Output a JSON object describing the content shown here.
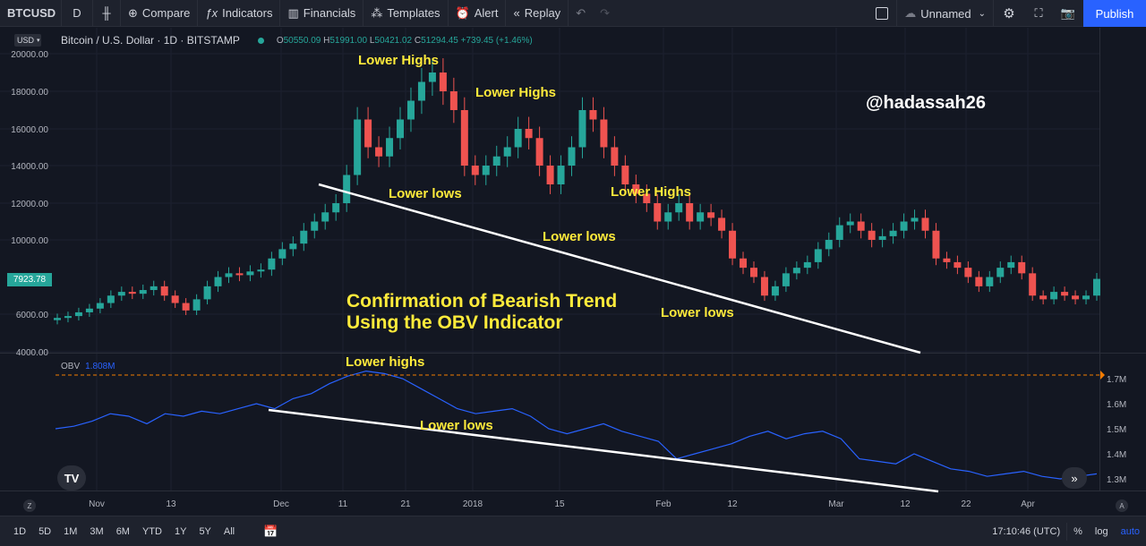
{
  "toolbar": {
    "symbol": "BTCUSD",
    "interval": "D",
    "compare": "Compare",
    "indicators": "Indicators",
    "financials": "Financials",
    "templates": "Templates",
    "alert": "Alert",
    "replay": "Replay",
    "layout_name": "Unnamed",
    "publish": "Publish"
  },
  "legend": {
    "currency": "USD",
    "title": "Bitcoin / U.S. Dollar · 1D · BITSTAMP",
    "open_label": "O",
    "open": "50550.09",
    "high_label": "H",
    "high": "51991.00",
    "low_label": "L",
    "low": "50421.02",
    "close_label": "C",
    "close": "51294.45",
    "change": "+739.45 (+1.46%)"
  },
  "obv_legend": {
    "name": "OBV",
    "value": "1.808M"
  },
  "price_tag": "7923.78",
  "annotations": {
    "lower_highs_1": "Lower Highs",
    "lower_highs_2": "Lower Highs",
    "lower_highs_3": "Lower Highs",
    "lower_lows_1": "Lower lows",
    "lower_lows_2": "Lower lows",
    "lower_lows_3": "Lower lows",
    "confirmation_line1": "Confirmation of Bearish Trend",
    "confirmation_line2": "Using the OBV Indicator",
    "obv_lower_highs": "Lower highs",
    "obv_lower_lows": "Lower lows",
    "watermark": "@hadassah26"
  },
  "price_axis": [
    "20000.00",
    "18000.00",
    "16000.00",
    "14000.00",
    "12000.00",
    "10000.00",
    "6000.00",
    "4000.00"
  ],
  "obv_axis": [
    "1.7M",
    "1.6M",
    "1.5M",
    "1.4M",
    "1.3M"
  ],
  "time_axis": [
    "Nov",
    "13",
    "Dec",
    "11",
    "21",
    "2018",
    "15",
    "Feb",
    "12",
    "Mar",
    "12",
    "22",
    "Apr"
  ],
  "bottom": {
    "ranges": [
      "1D",
      "5D",
      "1M",
      "3M",
      "6M",
      "YTD",
      "1Y",
      "5Y",
      "All"
    ],
    "time": "17:10:46 (UTC)",
    "percent": "%",
    "log": "log",
    "auto": "auto"
  },
  "colors": {
    "up": "#26a69a",
    "down": "#ef5350",
    "obv": "#2962ff",
    "annotation": "#ffeb3b",
    "background": "#131722"
  },
  "chart_data": {
    "type": "candlestick",
    "price_range": [
      4000,
      20000
    ],
    "obv_range_m": [
      1.25,
      1.75
    ],
    "price_close_approx": [
      5800,
      5900,
      6100,
      6300,
      6600,
      7000,
      7200,
      7100,
      7300,
      7500,
      7000,
      6600,
      6200,
      6800,
      7500,
      8000,
      8200,
      8100,
      8300,
      8400,
      9000,
      9500,
      9800,
      10500,
      11000,
      11500,
      12000,
      13500,
      16500,
      15000,
      14500,
      15500,
      16500,
      17500,
      18500,
      19000,
      18000,
      17000,
      14000,
      13500,
      14000,
      14500,
      15000,
      16000,
      15500,
      14000,
      13000,
      14000,
      15000,
      17000,
      16500,
      15000,
      14000,
      13000,
      12500,
      12000,
      11000,
      11500,
      12000,
      11000,
      11500,
      11200,
      10500,
      9000,
      8500,
      8000,
      7000,
      7500,
      8200,
      8500,
      8800,
      9500,
      10000,
      10800,
      11000,
      10500,
      10000,
      10200,
      10500,
      11000,
      11200,
      10500,
      9000,
      8800,
      8500,
      8000,
      7500,
      8000,
      8500,
      8800,
      8200,
      7000,
      6800,
      7200,
      7000,
      6800,
      7000,
      7900
    ],
    "obv_approx_m": [
      1.5,
      1.51,
      1.53,
      1.56,
      1.55,
      1.52,
      1.56,
      1.55,
      1.57,
      1.56,
      1.58,
      1.6,
      1.58,
      1.62,
      1.64,
      1.68,
      1.71,
      1.73,
      1.72,
      1.7,
      1.66,
      1.62,
      1.58,
      1.56,
      1.57,
      1.58,
      1.55,
      1.5,
      1.48,
      1.5,
      1.52,
      1.49,
      1.47,
      1.45,
      1.38,
      1.4,
      1.42,
      1.44,
      1.47,
      1.49,
      1.46,
      1.48,
      1.49,
      1.46,
      1.38,
      1.37,
      1.36,
      1.4,
      1.37,
      1.34,
      1.33,
      1.31,
      1.32,
      1.33,
      1.31,
      1.3,
      1.31,
      1.32
    ]
  }
}
